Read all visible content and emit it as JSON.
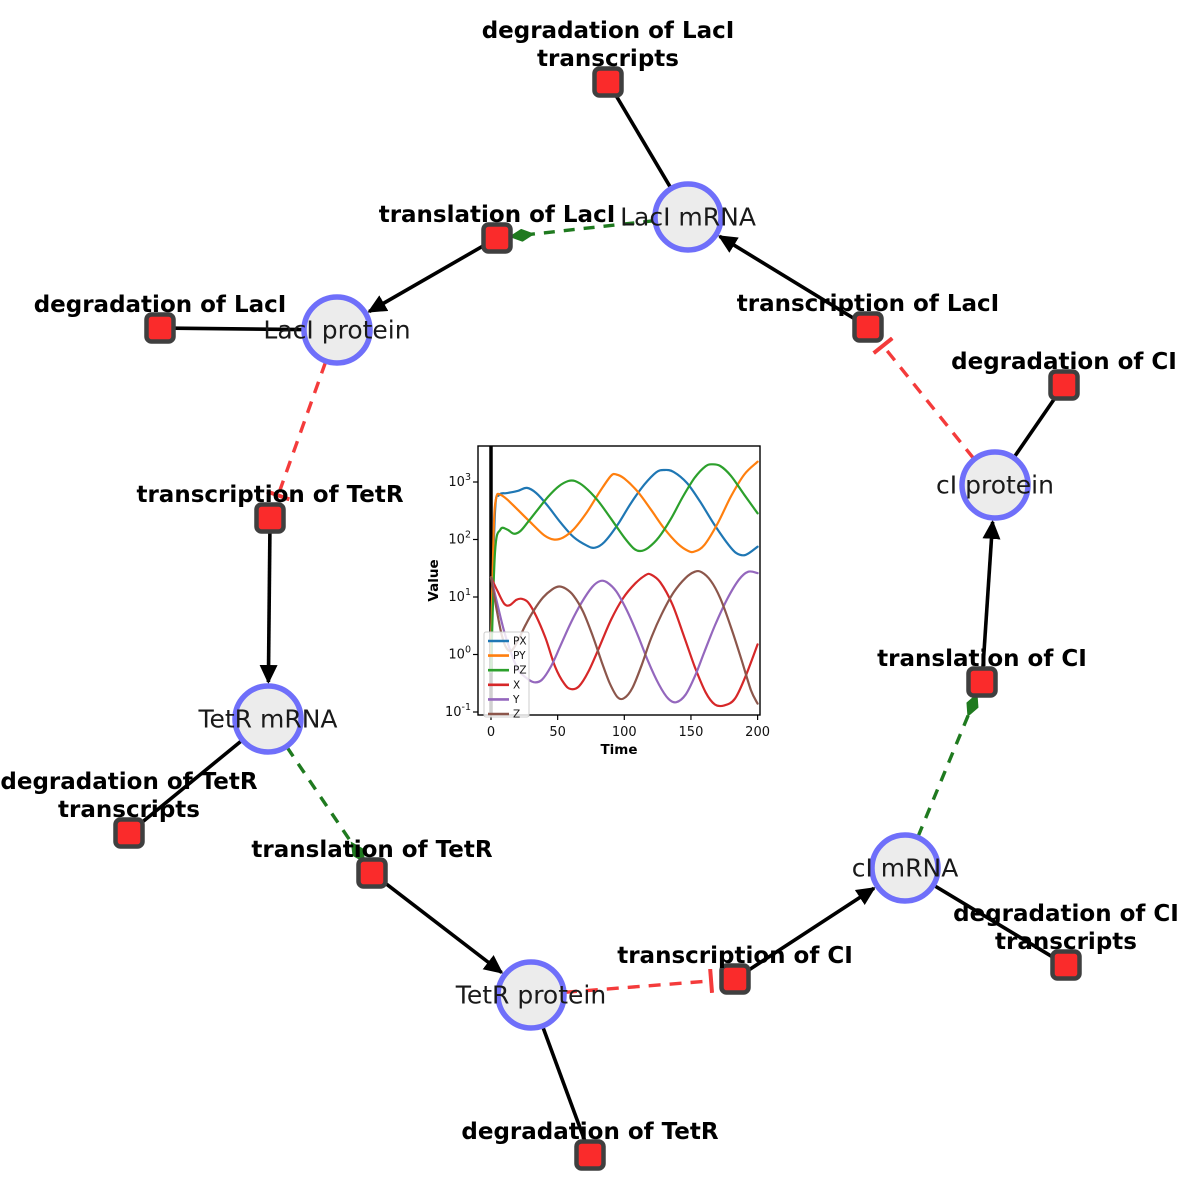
{
  "figure": {
    "description": "Repressilator gene regulatory network diagram with simulation inset",
    "colors": {
      "species_fill": "#ececec",
      "species_stroke": "#6f6ffa",
      "reaction_fill": "#fa2b2b",
      "reaction_stroke": "#3f3f3f",
      "production_edge": "#000000",
      "consumption_edge": "#000000",
      "modifier_edge": "#1f7a1f",
      "inhibition_edge": "#f43b3b"
    }
  },
  "diagram": {
    "species": [
      {
        "id": "laci_mrna",
        "label": "LacI mRNA"
      },
      {
        "id": "laci_protein",
        "label": "LacI protein"
      },
      {
        "id": "tetr_mrna",
        "label": "TetR mRNA"
      },
      {
        "id": "tetr_protein",
        "label": "TetR protein"
      },
      {
        "id": "ci_mrna",
        "label": "cI mRNA"
      },
      {
        "id": "ci_protein",
        "label": "cI protein"
      }
    ],
    "reactions": [
      {
        "id": "deg_laci_tx",
        "lines": [
          "degradation of LacI",
          "transcripts"
        ]
      },
      {
        "id": "transl_laci",
        "lines": [
          "translation of LacI"
        ]
      },
      {
        "id": "deg_laci",
        "lines": [
          "degradation of LacI"
        ]
      },
      {
        "id": "txn_laci",
        "lines": [
          "transcription of LacI"
        ]
      },
      {
        "id": "deg_ci",
        "lines": [
          "degradation of CI"
        ]
      },
      {
        "id": "txn_tetr",
        "lines": [
          "transcription of TetR"
        ]
      },
      {
        "id": "deg_tetr_tx",
        "lines": [
          "degradation of TetR",
          "transcripts"
        ]
      },
      {
        "id": "transl_tetr",
        "lines": [
          "translation of TetR"
        ]
      },
      {
        "id": "deg_tetr",
        "lines": [
          "degradation of TetR"
        ]
      },
      {
        "id": "txn_ci",
        "lines": [
          "transcription of CI"
        ]
      },
      {
        "id": "deg_ci_tx",
        "lines": [
          "degradation of CI",
          "transcripts"
        ]
      },
      {
        "id": "transl_ci",
        "lines": [
          "translation of CI"
        ]
      }
    ],
    "edges": [
      {
        "from": "laci_mrna",
        "to": "deg_laci_tx",
        "type": "consumption"
      },
      {
        "from": "laci_mrna",
        "to": "transl_laci",
        "type": "modifier"
      },
      {
        "from": "txn_laci",
        "to": "laci_mrna",
        "type": "production"
      },
      {
        "from": "transl_laci",
        "to": "laci_protein",
        "type": "production"
      },
      {
        "from": "laci_protein",
        "to": "deg_laci",
        "type": "consumption"
      },
      {
        "from": "laci_protein",
        "to": "txn_tetr",
        "type": "inhibition"
      },
      {
        "from": "txn_tetr",
        "to": "tetr_mrna",
        "type": "production"
      },
      {
        "from": "tetr_mrna",
        "to": "deg_tetr_tx",
        "type": "consumption"
      },
      {
        "from": "tetr_mrna",
        "to": "transl_tetr",
        "type": "modifier"
      },
      {
        "from": "transl_tetr",
        "to": "tetr_protein",
        "type": "production"
      },
      {
        "from": "tetr_protein",
        "to": "deg_tetr",
        "type": "consumption"
      },
      {
        "from": "tetr_protein",
        "to": "txn_ci",
        "type": "inhibition"
      },
      {
        "from": "txn_ci",
        "to": "ci_mrna",
        "type": "production"
      },
      {
        "from": "ci_mrna",
        "to": "deg_ci_tx",
        "type": "consumption"
      },
      {
        "from": "ci_mrna",
        "to": "transl_ci",
        "type": "modifier"
      },
      {
        "from": "transl_ci",
        "to": "ci_protein",
        "type": "production"
      },
      {
        "from": "ci_protein",
        "to": "deg_ci",
        "type": "consumption"
      },
      {
        "from": "ci_protein",
        "to": "txn_laci",
        "type": "inhibition"
      }
    ]
  },
  "chart_data": {
    "type": "line",
    "title": "",
    "xlabel": "Time",
    "ylabel": "Value",
    "x_ticks": [
      0,
      50,
      100,
      150,
      200
    ],
    "xlim": [
      -10,
      211
    ],
    "y_scale": "log",
    "y_tick_exponents": [
      -1,
      0,
      1,
      2,
      3
    ],
    "ylim_log": [
      -1.05,
      3.63
    ],
    "grid": false,
    "legend_position": "lower left",
    "annotations": [
      {
        "type": "vline",
        "x": 0,
        "color": "#000000"
      }
    ],
    "series": [
      {
        "name": "PX",
        "color": "#1f77b4",
        "points": [
          [
            0,
            2
          ],
          [
            3,
            300
          ],
          [
            6,
            590
          ],
          [
            12,
            640
          ],
          [
            20,
            700
          ],
          [
            27,
            790
          ],
          [
            34,
            640
          ],
          [
            42,
            400
          ],
          [
            52,
            200
          ],
          [
            62,
            110
          ],
          [
            72,
            78
          ],
          [
            78,
            72
          ],
          [
            85,
            90
          ],
          [
            95,
            180
          ],
          [
            105,
            430
          ],
          [
            115,
            900
          ],
          [
            124,
            1480
          ],
          [
            130,
            1620
          ],
          [
            137,
            1500
          ],
          [
            147,
            960
          ],
          [
            157,
            450
          ],
          [
            167,
            190
          ],
          [
            177,
            88
          ],
          [
            184,
            58
          ],
          [
            191,
            54
          ],
          [
            200,
            75
          ]
        ]
      },
      {
        "name": "PY",
        "color": "#ff7f0e",
        "points": [
          [
            0,
            1
          ],
          [
            2,
            150
          ],
          [
            4,
            540
          ],
          [
            7,
            600
          ],
          [
            12,
            500
          ],
          [
            20,
            330
          ],
          [
            30,
            195
          ],
          [
            40,
            118
          ],
          [
            47,
            100
          ],
          [
            54,
            108
          ],
          [
            62,
            150
          ],
          [
            72,
            300
          ],
          [
            82,
            700
          ],
          [
            90,
            1280
          ],
          [
            94,
            1350
          ],
          [
            100,
            1150
          ],
          [
            110,
            680
          ],
          [
            120,
            330
          ],
          [
            130,
            155
          ],
          [
            140,
            85
          ],
          [
            148,
            63
          ],
          [
            153,
            62
          ],
          [
            160,
            80
          ],
          [
            170,
            190
          ],
          [
            180,
            560
          ],
          [
            190,
            1350
          ],
          [
            200,
            2250
          ]
        ]
      },
      {
        "name": "PZ",
        "color": "#2ca02c",
        "points": [
          [
            0,
            0.5
          ],
          [
            3,
            60
          ],
          [
            7,
            148
          ],
          [
            12,
            150
          ],
          [
            17,
            126
          ],
          [
            22,
            140
          ],
          [
            28,
            205
          ],
          [
            35,
            330
          ],
          [
            43,
            560
          ],
          [
            51,
            850
          ],
          [
            58,
            1040
          ],
          [
            63,
            1040
          ],
          [
            70,
            830
          ],
          [
            80,
            480
          ],
          [
            90,
            230
          ],
          [
            100,
            108
          ],
          [
            107,
            70
          ],
          [
            112,
            63
          ],
          [
            118,
            72
          ],
          [
            126,
            110
          ],
          [
            135,
            230
          ],
          [
            144,
            560
          ],
          [
            153,
            1200
          ],
          [
            161,
            1880
          ],
          [
            166,
            2030
          ],
          [
            172,
            1900
          ],
          [
            180,
            1280
          ],
          [
            190,
            600
          ],
          [
            200,
            285
          ]
        ]
      },
      {
        "name": "X",
        "color": "#d62728",
        "points": [
          [
            0,
            22
          ],
          [
            5,
            12.5
          ],
          [
            10,
            7.6
          ],
          [
            14,
            7.2
          ],
          [
            19,
            8.9
          ],
          [
            23,
            9.3
          ],
          [
            28,
            8
          ],
          [
            34,
            4.6
          ],
          [
            41,
            1.9
          ],
          [
            48,
            0.62
          ],
          [
            55,
            0.31
          ],
          [
            60,
            0.25
          ],
          [
            66,
            0.28
          ],
          [
            73,
            0.5
          ],
          [
            81,
            1.3
          ],
          [
            90,
            4
          ],
          [
            99,
            9.5
          ],
          [
            108,
            17
          ],
          [
            116,
            24
          ],
          [
            120,
            24.5
          ],
          [
            127,
            18
          ],
          [
            136,
            7.5
          ],
          [
            145,
            2
          ],
          [
            153,
            0.6
          ],
          [
            161,
            0.22
          ],
          [
            168,
            0.135
          ],
          [
            175,
            0.13
          ],
          [
            183,
            0.17
          ],
          [
            191,
            0.42
          ],
          [
            200,
            1.5
          ]
        ]
      },
      {
        "name": "Y",
        "color": "#9467bd",
        "points": [
          [
            0,
            22
          ],
          [
            4,
            9
          ],
          [
            9,
            3
          ],
          [
            14,
            1.25
          ],
          [
            20,
            0.56
          ],
          [
            26,
            0.4
          ],
          [
            32,
            0.33
          ],
          [
            38,
            0.36
          ],
          [
            45,
            0.62
          ],
          [
            52,
            1.4
          ],
          [
            60,
            3.6
          ],
          [
            68,
            8
          ],
          [
            76,
            15
          ],
          [
            82,
            19
          ],
          [
            87,
            18
          ],
          [
            94,
            12.5
          ],
          [
            102,
            5.8
          ],
          [
            110,
            2.2
          ],
          [
            118,
            0.75
          ],
          [
            126,
            0.3
          ],
          [
            133,
            0.17
          ],
          [
            139,
            0.148
          ],
          [
            146,
            0.2
          ],
          [
            153,
            0.42
          ],
          [
            160,
            1.1
          ],
          [
            168,
            3.2
          ],
          [
            177,
            9
          ],
          [
            186,
            20
          ],
          [
            193,
            27.5
          ],
          [
            200,
            26
          ]
        ]
      },
      {
        "name": "Z",
        "color": "#8c564b",
        "points": [
          [
            0,
            22
          ],
          [
            4,
            6.5
          ],
          [
            8,
            2.2
          ],
          [
            12,
            1.25
          ],
          [
            16,
            1.2
          ],
          [
            21,
            1.9
          ],
          [
            26,
            3.3
          ],
          [
            32,
            5.8
          ],
          [
            39,
            9.8
          ],
          [
            46,
            13.6
          ],
          [
            51,
            15.2
          ],
          [
            56,
            14
          ],
          [
            62,
            10.5
          ],
          [
            69,
            5.6
          ],
          [
            76,
            2.2
          ],
          [
            83,
            0.75
          ],
          [
            89,
            0.32
          ],
          [
            95,
            0.18
          ],
          [
            100,
            0.175
          ],
          [
            106,
            0.26
          ],
          [
            113,
            0.65
          ],
          [
            120,
            1.9
          ],
          [
            128,
            5
          ],
          [
            137,
            12
          ],
          [
            146,
            21.5
          ],
          [
            153,
            27.5
          ],
          [
            158,
            27
          ],
          [
            165,
            19
          ],
          [
            172,
            9.5
          ],
          [
            180,
            3
          ],
          [
            188,
            0.8
          ],
          [
            195,
            0.24
          ],
          [
            200,
            0.14
          ]
        ]
      }
    ]
  }
}
